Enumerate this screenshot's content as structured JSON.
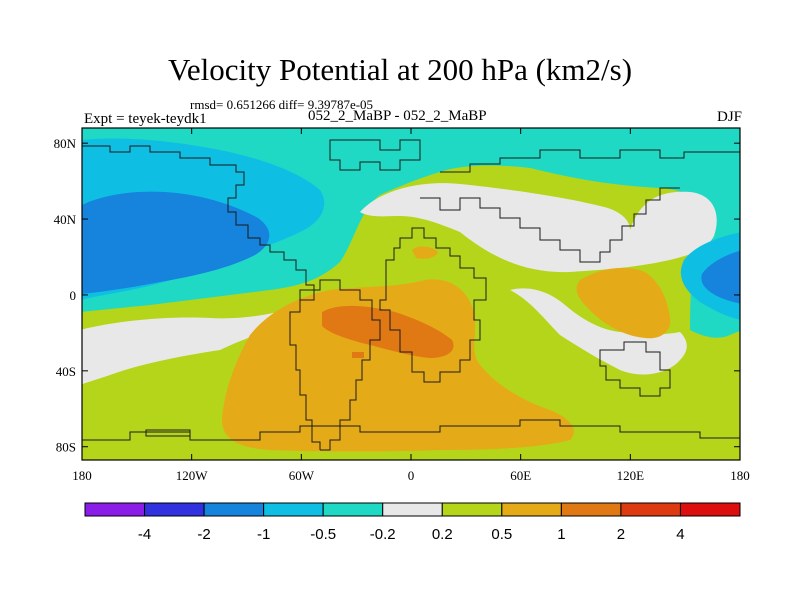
{
  "title": "Velocity Potential at 200 hPa (km2/s)",
  "stats": "rmsd= 0.651266 diff= 9.39787e-05",
  "left_label": "Expt = teyek-teydk1",
  "center_label": "052_2_MaBP - 052_2_MaBP",
  "right_label": "DJF",
  "chart_data": {
    "type": "heatmap",
    "projection": "cylindrical-equidistant",
    "title": "Velocity Potential at 200 hPa (km2/s)",
    "variable": "Velocity Potential",
    "level": "200 hPa",
    "units": "km2/s",
    "season": "DJF",
    "xlim": [
      -180,
      180
    ],
    "ylim": [
      -90,
      90
    ],
    "x_ticks": [
      {
        "value": -180,
        "label": "180"
      },
      {
        "value": -120,
        "label": "120W"
      },
      {
        "value": -60,
        "label": "60W"
      },
      {
        "value": 0,
        "label": "0"
      },
      {
        "value": 60,
        "label": "60E"
      },
      {
        "value": 120,
        "label": "120E"
      },
      {
        "value": 180,
        "label": "180"
      }
    ],
    "y_ticks": [
      {
        "value": 80,
        "label": "80N"
      },
      {
        "value": 40,
        "label": "40N"
      },
      {
        "value": 0,
        "label": "0"
      },
      {
        "value": -40,
        "label": "40S"
      },
      {
        "value": -80,
        "label": "80S"
      }
    ],
    "colorbar": {
      "levels": [
        "-4",
        "-2",
        "-1",
        "-0.5",
        "-0.2",
        "0.2",
        "0.5",
        "1",
        "2",
        "4"
      ],
      "colors": [
        "#8a1ee8",
        "#3131e0",
        "#1683dd",
        "#0fbfe3",
        "#1fd9c4",
        "#e8e8e8",
        "#b5d51a",
        "#e5aa18",
        "#e07814",
        "#dd3a12",
        "#dc0e0e"
      ]
    }
  }
}
